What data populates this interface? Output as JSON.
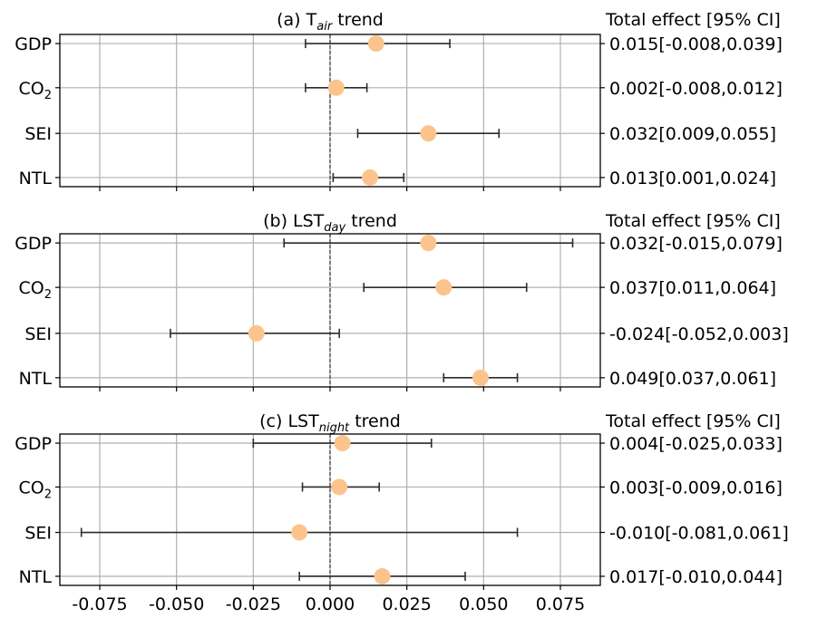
{
  "chart_data": [
    {
      "type": "forest",
      "title": {
        "prefix": "(a) T",
        "subscript": "air",
        "suffix": " trend"
      },
      "effect_header": "Total effect [95% CI]",
      "categories": [
        {
          "label": "GDP",
          "sub": ""
        },
        {
          "label": "CO",
          "sub": "2"
        },
        {
          "label": "SEI",
          "sub": ""
        },
        {
          "label": "NTL",
          "sub": ""
        }
      ],
      "estimates": [
        0.015,
        0.002,
        0.032,
        0.013
      ],
      "ci_low": [
        -0.008,
        -0.008,
        0.009,
        0.001
      ],
      "ci_high": [
        0.039,
        0.012,
        0.055,
        0.024
      ],
      "effect_labels": [
        "0.015[-0.008,0.039]",
        "0.002[-0.008,0.012]",
        "0.032[0.009,0.055]",
        "0.013[0.001,0.024]"
      ],
      "xlim": [
        -0.088,
        0.088
      ],
      "reference_line": 0,
      "grid": true
    },
    {
      "type": "forest",
      "title": {
        "prefix": "(b) LST",
        "subscript": "day",
        "suffix": " trend"
      },
      "effect_header": "Total effect [95% CI]",
      "categories": [
        {
          "label": "GDP",
          "sub": ""
        },
        {
          "label": "CO",
          "sub": "2"
        },
        {
          "label": "SEI",
          "sub": ""
        },
        {
          "label": "NTL",
          "sub": ""
        }
      ],
      "estimates": [
        0.032,
        0.037,
        -0.024,
        0.049
      ],
      "ci_low": [
        -0.015,
        0.011,
        -0.052,
        0.037
      ],
      "ci_high": [
        0.079,
        0.064,
        0.003,
        0.061
      ],
      "effect_labels": [
        "0.032[-0.015,0.079]",
        "0.037[0.011,0.064]",
        "-0.024[-0.052,0.003]",
        "0.049[0.037,0.061]"
      ],
      "xlim": [
        -0.088,
        0.088
      ],
      "reference_line": 0,
      "grid": true
    },
    {
      "type": "forest",
      "title": {
        "prefix": "(c) LST",
        "subscript": "night",
        "suffix": " trend"
      },
      "effect_header": "Total effect [95% CI]",
      "categories": [
        {
          "label": "GDP",
          "sub": ""
        },
        {
          "label": "CO",
          "sub": "2"
        },
        {
          "label": "SEI",
          "sub": ""
        },
        {
          "label": "NTL",
          "sub": ""
        }
      ],
      "estimates": [
        0.004,
        0.003,
        -0.01,
        0.017
      ],
      "ci_low": [
        -0.025,
        -0.009,
        -0.081,
        -0.01
      ],
      "ci_high": [
        0.033,
        0.016,
        0.061,
        0.044
      ],
      "effect_labels": [
        "0.004[-0.025,0.033]",
        "0.003[-0.009,0.016]",
        "-0.010[-0.081,0.061]",
        "0.017[-0.010,0.044]"
      ],
      "xlim": [
        -0.088,
        0.088
      ],
      "reference_line": 0,
      "grid": true
    }
  ],
  "x_axis": {
    "ticks": [
      -0.075,
      -0.05,
      -0.025,
      0,
      0.025,
      0.05,
      0.075
    ],
    "tick_labels": [
      "-0.075",
      "-0.050",
      "-0.025",
      "0.000",
      "0.025",
      "0.050",
      "0.075"
    ]
  },
  "colors": {
    "marker": "#fcc48c",
    "errorbar": "#2b2b2b",
    "grid": "#b0b0b0",
    "reference_line": "#333333",
    "axes": "#000000"
  }
}
